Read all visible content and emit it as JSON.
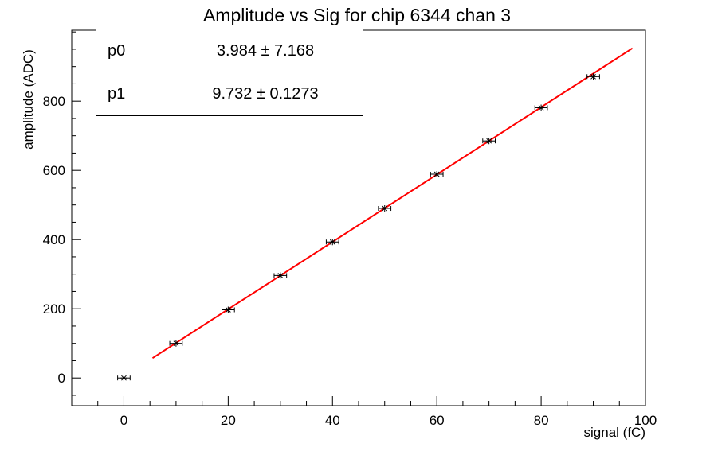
{
  "title": "Amplitude vs Sig for chip 6344 chan 3",
  "stats_box": {
    "rows": [
      {
        "name": "p0",
        "value": "3.984 ± 7.168"
      },
      {
        "name": "p1",
        "value": "9.732 ± 0.1273"
      }
    ]
  },
  "colors": {
    "background": "#ffffff",
    "axis": "#000000",
    "marker": "#000000",
    "fit_line": "#ff0000"
  },
  "chart_data": {
    "type": "scatter",
    "title": "Amplitude vs Sig for chip 6344 chan 3",
    "xlabel": "signal (fC)",
    "ylabel": "amplitude (ADC)",
    "x": [
      0,
      10,
      20,
      30,
      40,
      50,
      60,
      70,
      80,
      90
    ],
    "y": [
      0,
      100,
      197,
      296,
      393,
      490,
      589,
      685,
      781,
      871
    ],
    "x_err": 1.2,
    "xlim": [
      -10,
      100
    ],
    "ylim": [
      -80,
      1005
    ],
    "x_major_ticks": [
      0,
      20,
      40,
      60,
      80,
      100
    ],
    "x_minor_step": 5,
    "y_major_ticks": [
      0,
      200,
      400,
      600,
      800
    ],
    "y_minor_step": 50,
    "grid": false,
    "legend": "none",
    "marker": "star",
    "fit": {
      "type": "linear",
      "p0": 3.984,
      "p1": 9.732,
      "x_start": 5.5,
      "x_end": 97.5,
      "color": "#ff0000"
    }
  }
}
